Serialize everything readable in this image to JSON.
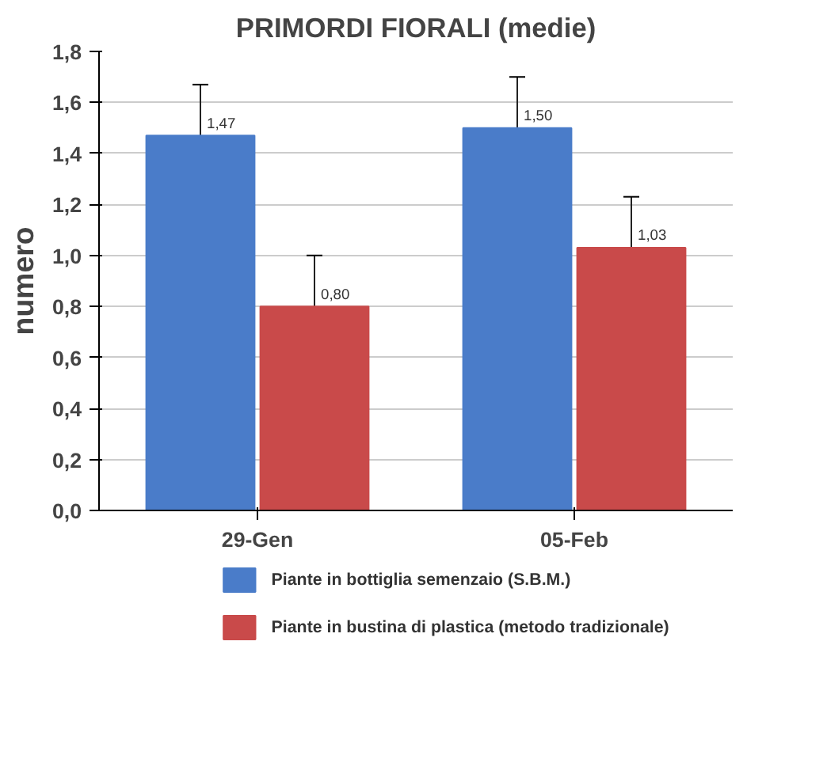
{
  "chart_data": {
    "type": "bar",
    "title": "PRIMORDI FIORALI (medie)",
    "ylabel": "numero",
    "categories": [
      "29-Gen",
      "05-Feb"
    ],
    "series": [
      {
        "name": "Piante in bottiglia semenzaio  (S.B.M.)",
        "color": "#4a7cc9",
        "values": [
          1.47,
          1.5
        ],
        "errors": [
          0.2,
          0.2
        ],
        "value_labels": [
          "1,47",
          "1,50"
        ]
      },
      {
        "name": "Piante in bustina di plastica (metodo tradizionale)",
        "color": "#c94a4a",
        "values": [
          0.8,
          1.03
        ],
        "errors": [
          0.2,
          0.2
        ],
        "value_labels": [
          "0,80",
          "1,03"
        ]
      }
    ],
    "ylim": [
      0,
      1.8
    ],
    "yticks": [
      {
        "value": 0,
        "label": "0,0"
      },
      {
        "value": 0.2,
        "label": "0,2"
      },
      {
        "value": 0.4,
        "label": "0,4"
      },
      {
        "value": 0.6,
        "label": "0,6"
      },
      {
        "value": 0.8,
        "label": "0,8"
      },
      {
        "value": 1.0,
        "label": "1,0"
      },
      {
        "value": 1.2,
        "label": "1,2"
      },
      {
        "value": 1.4,
        "label": "1,4"
      },
      {
        "value": 1.6,
        "label": "1,6"
      },
      {
        "value": 1.8,
        "label": "1,8"
      }
    ],
    "grid": "y",
    "legend": "bottom"
  }
}
